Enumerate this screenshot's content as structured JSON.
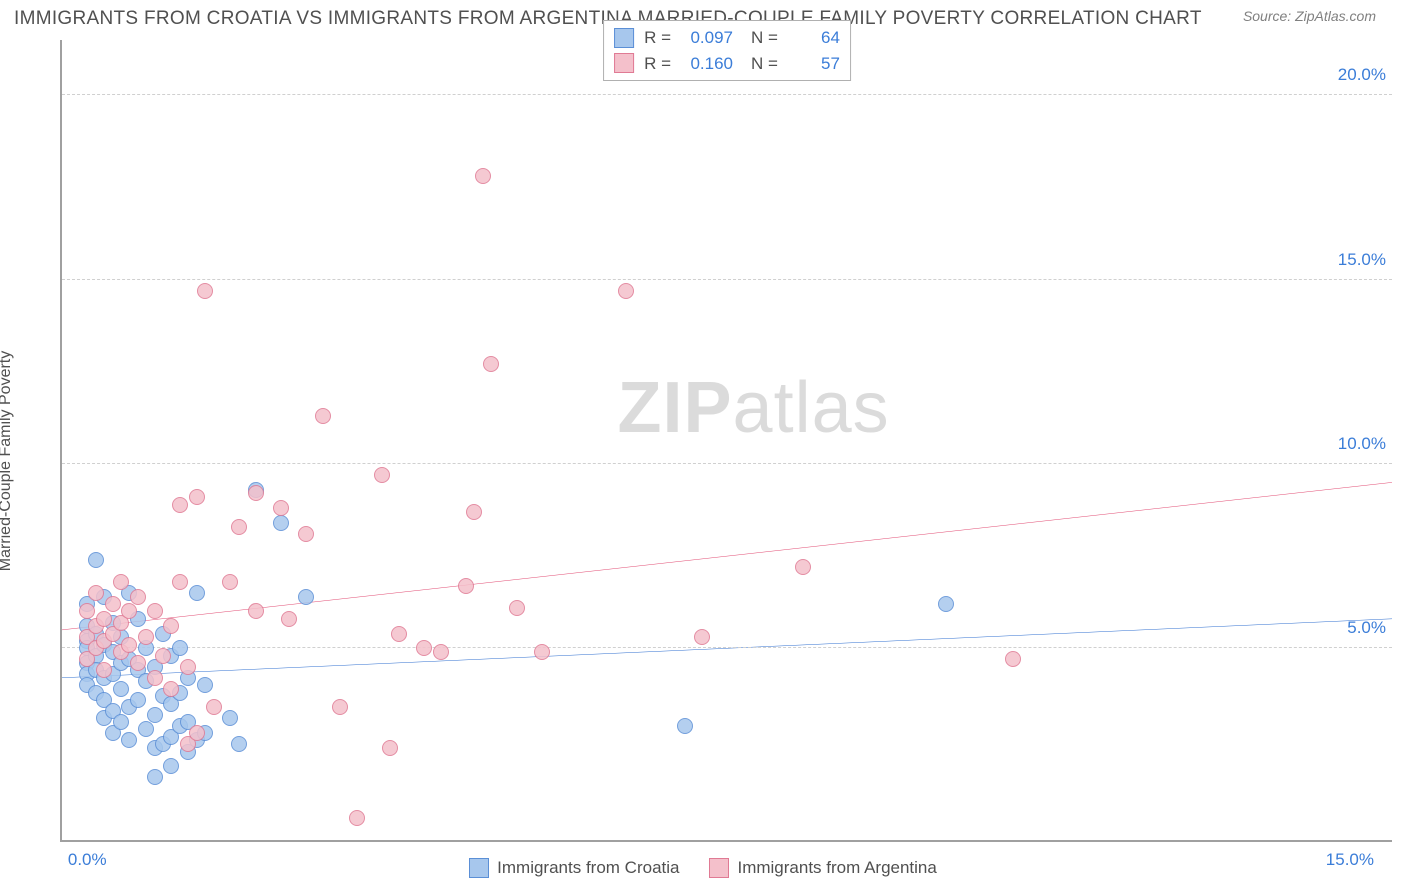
{
  "title": "IMMIGRANTS FROM CROATIA VS IMMIGRANTS FROM ARGENTINA MARRIED-COUPLE FAMILY POVERTY CORRELATION CHART",
  "source": "Source: ZipAtlas.com",
  "y_axis_label": "Married-Couple Family Poverty",
  "watermark_bold": "ZIP",
  "watermark_rest": "atlas",
  "chart": {
    "type": "scatter",
    "background_color": "#ffffff",
    "grid_color": "#d0d0d0",
    "axis_color": "#a0a0a0",
    "tick_label_color": "#3b7dd8",
    "tick_fontsize": 17,
    "x_range": [
      -0.3,
      15.5
    ],
    "y_range": [
      -0.2,
      21.5
    ],
    "x_ticks": [
      {
        "v": 0.0,
        "l": "0.0%"
      },
      {
        "v": 15.0,
        "l": "15.0%"
      }
    ],
    "y_ticks": [
      {
        "v": 5.0,
        "l": "5.0%"
      },
      {
        "v": 10.0,
        "l": "10.0%"
      },
      {
        "v": 15.0,
        "l": "15.0%"
      },
      {
        "v": 20.0,
        "l": "20.0%"
      }
    ],
    "marker_radius": 8,
    "marker_border_width": 1.5,
    "series": [
      {
        "id": "croatia",
        "label": "Immigrants from Croatia",
        "fill": "#a7c7ed",
        "stroke": "#5b8fd6",
        "line_color": "#2f6fd0",
        "r_value": "0.097",
        "n_value": "64",
        "trend": {
          "x1": -0.3,
          "y1": 4.2,
          "x2": 15.5,
          "y2": 5.8,
          "width": 2
        },
        "points": [
          [
            0.0,
            6.2
          ],
          [
            0.0,
            5.6
          ],
          [
            0.0,
            5.2
          ],
          [
            0.0,
            5.0
          ],
          [
            0.0,
            4.6
          ],
          [
            0.0,
            4.3
          ],
          [
            0.0,
            4.0
          ],
          [
            0.1,
            7.4
          ],
          [
            0.1,
            5.4
          ],
          [
            0.1,
            4.8
          ],
          [
            0.1,
            4.4
          ],
          [
            0.1,
            3.8
          ],
          [
            0.2,
            6.4
          ],
          [
            0.2,
            5.1
          ],
          [
            0.2,
            4.2
          ],
          [
            0.2,
            3.6
          ],
          [
            0.2,
            3.1
          ],
          [
            0.3,
            5.7
          ],
          [
            0.3,
            4.9
          ],
          [
            0.3,
            4.3
          ],
          [
            0.3,
            3.3
          ],
          [
            0.3,
            2.7
          ],
          [
            0.4,
            5.3
          ],
          [
            0.4,
            4.6
          ],
          [
            0.4,
            3.9
          ],
          [
            0.4,
            3.0
          ],
          [
            0.5,
            6.5
          ],
          [
            0.5,
            4.7
          ],
          [
            0.5,
            3.4
          ],
          [
            0.5,
            2.5
          ],
          [
            0.6,
            5.8
          ],
          [
            0.6,
            4.4
          ],
          [
            0.6,
            3.6
          ],
          [
            0.7,
            5.0
          ],
          [
            0.7,
            4.1
          ],
          [
            0.7,
            2.8
          ],
          [
            0.8,
            4.5
          ],
          [
            0.8,
            3.2
          ],
          [
            0.8,
            2.3
          ],
          [
            0.8,
            1.5
          ],
          [
            0.9,
            5.4
          ],
          [
            0.9,
            3.7
          ],
          [
            0.9,
            2.4
          ],
          [
            1.0,
            4.8
          ],
          [
            1.0,
            3.5
          ],
          [
            1.0,
            2.6
          ],
          [
            1.0,
            1.8
          ],
          [
            1.1,
            5.0
          ],
          [
            1.1,
            3.8
          ],
          [
            1.1,
            2.9
          ],
          [
            1.2,
            4.2
          ],
          [
            1.2,
            3.0
          ],
          [
            1.2,
            2.2
          ],
          [
            1.3,
            6.5
          ],
          [
            1.3,
            2.5
          ],
          [
            1.4,
            4.0
          ],
          [
            1.4,
            2.7
          ],
          [
            1.7,
            3.1
          ],
          [
            1.8,
            2.4
          ],
          [
            2.0,
            9.3
          ],
          [
            2.3,
            8.4
          ],
          [
            2.6,
            6.4
          ],
          [
            7.1,
            2.9
          ],
          [
            10.2,
            6.2
          ]
        ]
      },
      {
        "id": "argentina",
        "label": "Immigrants from Argentina",
        "fill": "#f4c0cb",
        "stroke": "#e07a94",
        "line_color": "#e24b72",
        "r_value": "0.160",
        "n_value": "57",
        "trend": {
          "x1": -0.3,
          "y1": 5.5,
          "x2": 15.5,
          "y2": 9.5,
          "width": 2
        },
        "points": [
          [
            0.0,
            6.0
          ],
          [
            0.0,
            5.3
          ],
          [
            0.0,
            4.7
          ],
          [
            0.1,
            6.5
          ],
          [
            0.1,
            5.6
          ],
          [
            0.1,
            5.0
          ],
          [
            0.2,
            5.8
          ],
          [
            0.2,
            5.2
          ],
          [
            0.2,
            4.4
          ],
          [
            0.3,
            6.2
          ],
          [
            0.3,
            5.4
          ],
          [
            0.4,
            6.8
          ],
          [
            0.4,
            5.7
          ],
          [
            0.4,
            4.9
          ],
          [
            0.5,
            6.0
          ],
          [
            0.5,
            5.1
          ],
          [
            0.6,
            6.4
          ],
          [
            0.6,
            4.6
          ],
          [
            0.7,
            5.3
          ],
          [
            0.8,
            6.0
          ],
          [
            0.8,
            4.2
          ],
          [
            0.9,
            4.8
          ],
          [
            1.0,
            5.6
          ],
          [
            1.0,
            3.9
          ],
          [
            1.1,
            8.9
          ],
          [
            1.1,
            6.8
          ],
          [
            1.2,
            4.5
          ],
          [
            1.2,
            2.4
          ],
          [
            1.3,
            9.1
          ],
          [
            1.3,
            2.7
          ],
          [
            1.4,
            14.7
          ],
          [
            1.5,
            3.4
          ],
          [
            1.7,
            6.8
          ],
          [
            1.8,
            8.3
          ],
          [
            2.0,
            9.2
          ],
          [
            2.0,
            6.0
          ],
          [
            2.3,
            8.8
          ],
          [
            2.4,
            5.8
          ],
          [
            2.6,
            8.1
          ],
          [
            2.8,
            11.3
          ],
          [
            3.0,
            3.4
          ],
          [
            3.2,
            0.4
          ],
          [
            3.5,
            9.7
          ],
          [
            3.6,
            2.3
          ],
          [
            3.7,
            5.4
          ],
          [
            4.0,
            5.0
          ],
          [
            4.2,
            4.9
          ],
          [
            4.5,
            6.7
          ],
          [
            4.6,
            8.7
          ],
          [
            4.7,
            17.8
          ],
          [
            4.8,
            12.7
          ],
          [
            5.1,
            6.1
          ],
          [
            5.4,
            4.9
          ],
          [
            6.4,
            14.7
          ],
          [
            7.3,
            5.3
          ],
          [
            8.5,
            7.2
          ],
          [
            11.0,
            4.7
          ]
        ]
      }
    ]
  },
  "legend_top": {
    "r_label": "R =",
    "n_label": "N ="
  }
}
